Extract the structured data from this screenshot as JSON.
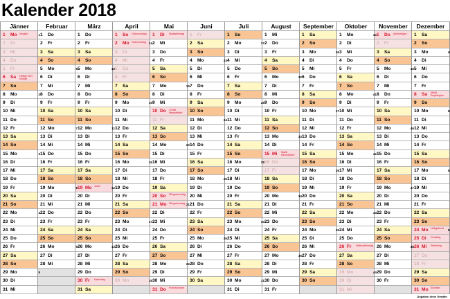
{
  "title": "Kalender 2018",
  "footer": "Angaben ohne Gewähr",
  "weekdays": [
    "Mo",
    "Di",
    "Mi",
    "Do",
    "Fr",
    "Sa",
    "So"
  ],
  "colors": {
    "saturday": "#fff7c4",
    "sunday": "#f9c594",
    "holiday_bg": "#f9dadd",
    "holiday_text": "#d3142a",
    "school_holiday_bg": "#f5e1e1",
    "empty": "#e2e2e2"
  },
  "months": [
    {
      "name": "Jänner",
      "first_weekday": "Mo",
      "length": 31,
      "holidays": {
        "1": "Neujahr",
        "6": "Heilige Drei Könige"
      },
      "school_holidays": [
        2,
        3,
        4,
        5
      ],
      "week_numbers": {
        "1": 1,
        "8": 2,
        "15": 3,
        "22": 4,
        "29": 5
      }
    },
    {
      "name": "Februar",
      "first_weekday": "Do",
      "length": 28,
      "holidays": {},
      "school_holidays": [],
      "week_numbers": {
        "5": 6,
        "12": 7,
        "19": 8,
        "26": 9
      }
    },
    {
      "name": "März",
      "first_weekday": "Do",
      "length": 31,
      "holidays": {
        "19": "Josef",
        "30": "Karfreitag"
      },
      "school_holidays": [],
      "week_numbers": {
        "5": 10,
        "12": 11,
        "19": 12,
        "26": 13
      }
    },
    {
      "name": "April",
      "first_weekday": "So",
      "length": 30,
      "holidays": {
        "1": "Ostersonntag",
        "2": "Ostermontag"
      },
      "school_holidays": [
        3,
        4,
        5,
        6,
        30
      ],
      "week_numbers": {
        "2": 14,
        "9": 15,
        "16": 16,
        "23": 17,
        "30": 18
      }
    },
    {
      "name": "Mai",
      "first_weekday": "Di",
      "length": 31,
      "holidays": {
        "1": "Staatsfeiertag",
        "10": "Christi Himmelfahrt",
        "20": "Pfingstsonntag",
        "21": "Pfingstmontag",
        "31": "Fronleichnam"
      },
      "school_holidays": [
        11
      ],
      "week_numbers": {
        "7": 19,
        "14": 20,
        "21": 21,
        "28": 22
      }
    },
    {
      "name": "Juni",
      "first_weekday": "Fr",
      "length": 30,
      "holidays": {},
      "school_holidays": [
        1
      ],
      "week_numbers": {
        "4": 23,
        "11": 24,
        "18": 25,
        "25": 26
      }
    },
    {
      "name": "Juli",
      "first_weekday": "So",
      "length": 31,
      "holidays": {},
      "school_holidays": [],
      "week_numbers": {
        "2": 27,
        "9": 28,
        "16": 29,
        "23": 30,
        "30": 31
      }
    },
    {
      "name": "August",
      "first_weekday": "Mi",
      "length": 31,
      "holidays": {
        "15": "Mariä Himmelfahrt"
      },
      "school_holidays": [
        16,
        17
      ],
      "week_numbers": {
        "6": 32,
        "13": 33,
        "20": 34,
        "27": 35
      }
    },
    {
      "name": "September",
      "first_weekday": "Sa",
      "length": 30,
      "holidays": {},
      "school_holidays": [],
      "week_numbers": {
        "3": 36,
        "10": 37,
        "17": 38,
        "24": 39
      }
    },
    {
      "name": "Oktober",
      "first_weekday": "Mo",
      "length": 31,
      "holidays": {
        "26": "Nationalfeiertag"
      },
      "school_holidays": [
        29,
        30,
        31
      ],
      "week_numbers": {
        "1": 40,
        "8": 41,
        "15": 42,
        "22": 43,
        "29": 44
      }
    },
    {
      "name": "November",
      "first_weekday": "Do",
      "length": 30,
      "holidays": {
        "1": "Allerheiligen"
      },
      "school_holidays": [
        2
      ],
      "week_numbers": {
        "5": 45,
        "12": 46,
        "19": 47,
        "26": 48
      }
    },
    {
      "name": "Dezember",
      "first_weekday": "Sa",
      "length": 31,
      "holidays": {
        "8": "Mariä Empfängnis",
        "24": "Heiligabend",
        "25": "Christtag",
        "26": "Stefanitag",
        "31": "Silvester"
      },
      "school_holidays": [
        27,
        28
      ],
      "week_numbers": {
        "3": 49,
        "10": 50,
        "17": 51,
        "24": 52
      }
    }
  ]
}
